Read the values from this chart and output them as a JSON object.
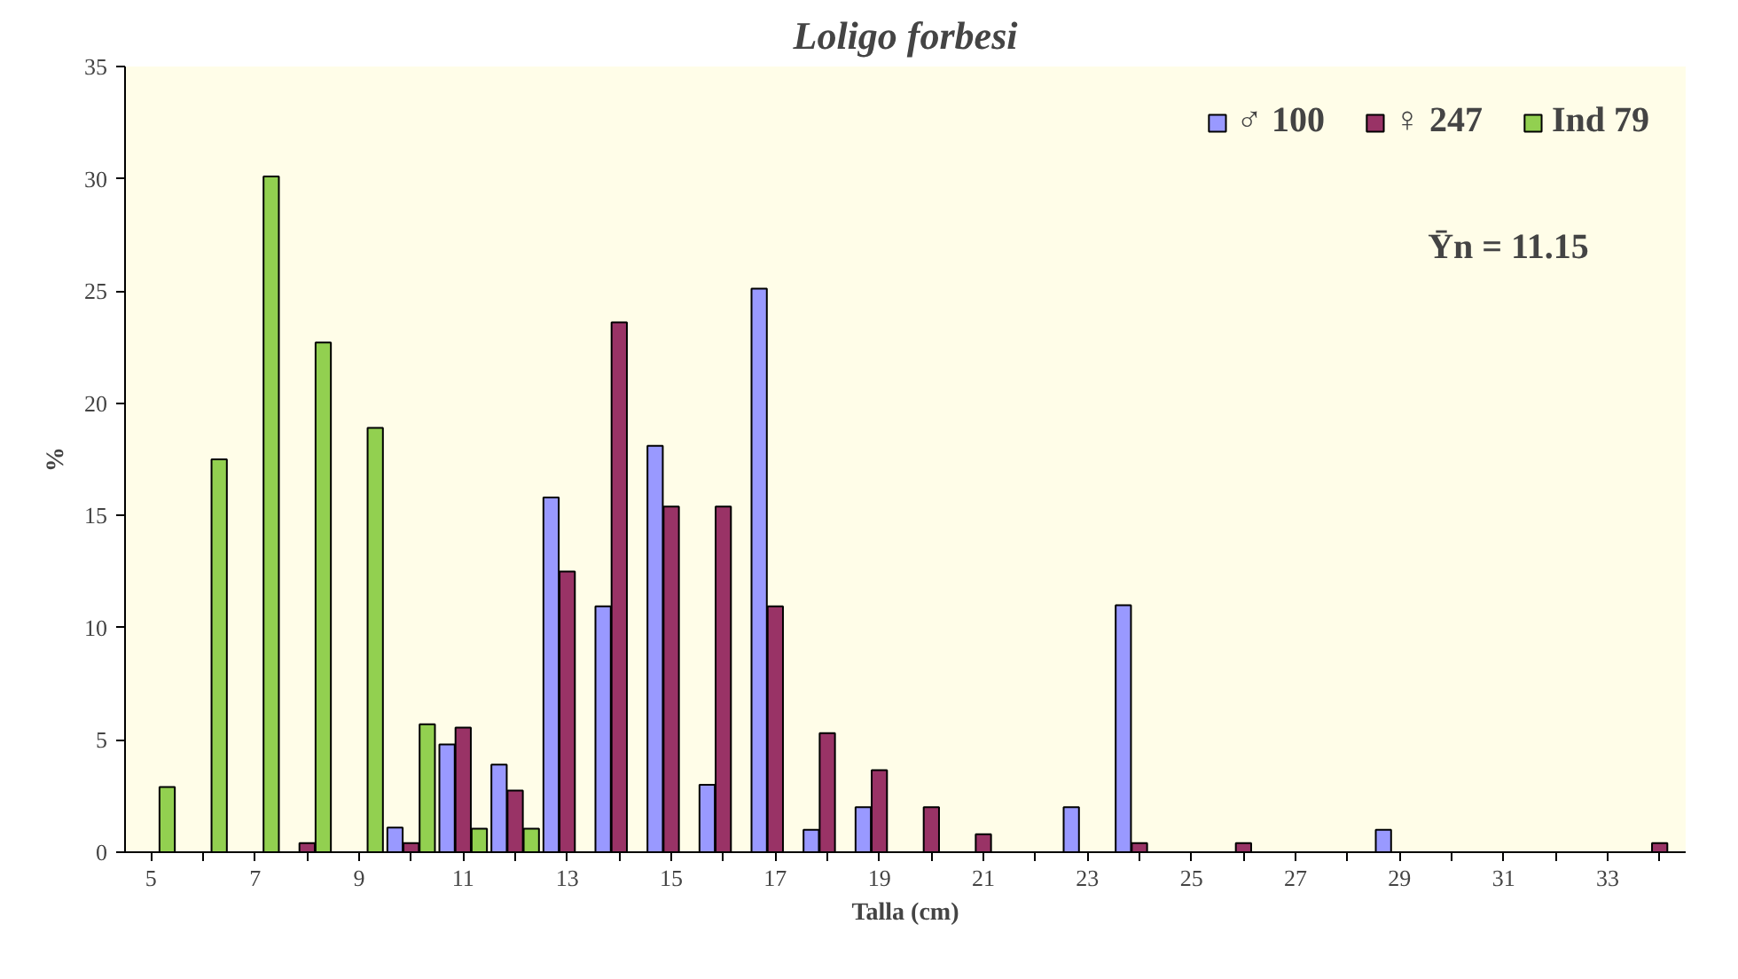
{
  "chart_data": {
    "type": "bar",
    "title": "Loligo forbesi",
    "xlabel": "Talla (cm)",
    "ylabel": "%",
    "categories": [
      "5",
      null,
      "7",
      null,
      "9",
      null,
      "11",
      null,
      "13",
      null,
      "15",
      null,
      "17",
      null,
      "19",
      null,
      "21",
      null,
      "23",
      null,
      "25",
      null,
      "27",
      null,
      "29",
      null,
      "31",
      null,
      "33",
      null
    ],
    "series": [
      {
        "name": "♂ 100",
        "color": "#9999ff",
        "values": [
          null,
          null,
          null,
          null,
          null,
          1.1,
          4.8,
          3.9,
          15.8,
          10.95,
          18.1,
          3.0,
          25.1,
          1.0,
          2.0,
          null,
          null,
          null,
          2.0,
          11.0,
          null,
          null,
          null,
          null,
          1.0,
          null,
          null,
          null,
          null,
          null
        ]
      },
      {
        "name": "♀ 247",
        "color": "#993366",
        "values": [
          null,
          null,
          null,
          0.4,
          null,
          0.4,
          5.55,
          2.75,
          12.5,
          23.6,
          15.4,
          15.4,
          10.95,
          5.3,
          3.65,
          2.0,
          0.8,
          null,
          null,
          0.4,
          null,
          0.4,
          null,
          null,
          null,
          null,
          null,
          null,
          null,
          0.4
        ]
      },
      {
        "name": "Ind 79",
        "color": "#92d050",
        "values": [
          2.9,
          17.5,
          30.1,
          22.7,
          18.9,
          5.7,
          1.05,
          1.05,
          null,
          null,
          null,
          null,
          null,
          null,
          null,
          null,
          null,
          null,
          null,
          null,
          null,
          null,
          null,
          null,
          null,
          null,
          null,
          null,
          null,
          null
        ]
      }
    ],
    "ylim": [
      0,
      35
    ],
    "yticks": [
      0,
      5,
      10,
      15,
      20,
      25,
      30,
      35
    ],
    "grid": false,
    "legend": "top right",
    "annotations": [
      "Ȳn = 11.15"
    ]
  }
}
